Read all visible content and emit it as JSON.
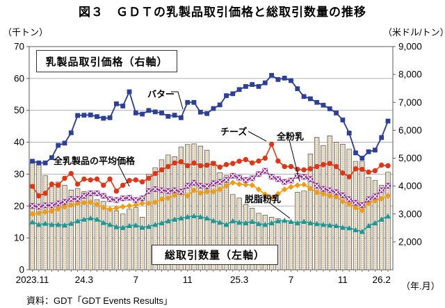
{
  "title": "図３　ＧＤＴの乳製品取引価格と総取引数量の推移",
  "source": "資料：GDT「GDT Events Results」",
  "axes": {
    "left_unit": "（千トン）",
    "right_unit": "（米ドル/トン）",
    "x_unit": "（年.月）"
  },
  "annotations": {
    "price_box": "乳製品取引価格（右軸）",
    "volume_box": "総取引数量（左軸）",
    "butter": "バター",
    "cheese": "チーズ",
    "wmp": "全粉乳",
    "average": "全乳製品の平均価格",
    "smp": "脱脂粉乳"
  },
  "colors": {
    "butter": "#2c3f99",
    "cheese": "#e23513",
    "average": "#8e2090",
    "wmp": "#f09d13",
    "smp": "#1d9a93",
    "bar_fill": "#f0e8d6",
    "bar_dot": "#b49a6e",
    "bar_stroke": "#4d4d4d",
    "grid": "#a6a6a6",
    "axis": "#595959"
  },
  "chart_data": {
    "type": "combo-bar-line",
    "n_points": 56,
    "x_description": "GDT auction events, two per month, Nov 2023 - Feb 2026",
    "x_tick_labels": [
      "2023.11",
      "24.3",
      "7",
      "11",
      "25.3",
      "7",
      "11",
      "26.2"
    ],
    "x_tick_point_indices": [
      0,
      8,
      16,
      24,
      32,
      40,
      48,
      54
    ],
    "left_axis": {
      "label": "千トン",
      "min": 0,
      "max": 70,
      "tick_step": 10,
      "ticks": [
        0,
        10,
        20,
        30,
        40,
        50,
        60,
        70
      ]
    },
    "right_axis": {
      "label": "米ドル/トン",
      "min": 1000,
      "max": 9000,
      "labeled_ticks": [
        2000,
        3000,
        4000,
        5000,
        6000,
        7000,
        8000,
        9000
      ]
    },
    "grid": "horizontal, every 10 on left axis",
    "volume_bars": {
      "name": "総取引数量",
      "axis": "left",
      "unit": "千トン",
      "values": [
        33.5,
        33,
        29.5,
        26,
        27.5,
        26.5,
        25,
        25.5,
        24.5,
        23.5,
        22,
        21.5,
        19,
        18.5,
        17.5,
        19,
        19.5,
        16.5,
        30,
        32,
        34.5,
        36,
        35.5,
        38.5,
        39.3,
        39.5,
        38.8,
        37.5,
        34,
        30.5,
        29.5,
        23.6,
        22.5,
        20.5,
        19.3,
        17.7,
        17.1,
        16.5,
        16,
        15.3,
        14.9,
        24.3,
        24.7,
        36.3,
        41.5,
        39,
        42,
        40,
        39.4,
        37.8,
        34,
        34,
        29,
        28,
        26.5,
        30.6
      ]
    },
    "price_series": [
      {
        "name": "バター",
        "marker": "square",
        "color": "#2c3f99",
        "axis": "right",
        "unit": "米ドル/トン",
        "values": [
          4890,
          4830,
          4830,
          5020,
          5460,
          5540,
          5910,
          6530,
          6540,
          6550,
          6490,
          6430,
          6450,
          6950,
          6870,
          7380,
          6620,
          6580,
          6710,
          6660,
          6620,
          6500,
          6540,
          6450,
          7000,
          7000,
          6650,
          6600,
          6780,
          6910,
          7240,
          7310,
          7460,
          7570,
          7640,
          7570,
          7700,
          7970,
          7820,
          7870,
          7780,
          7490,
          7210,
          7130,
          7000,
          6900,
          6770,
          6620,
          6370,
          5900,
          5190,
          5000,
          5230,
          5290,
          5740,
          6330
        ]
      },
      {
        "name": "チーズ",
        "marker": "circle",
        "color": "#e23513",
        "axis": "right",
        "unit": "米ドル/トン",
        "values": [
          3990,
          3650,
          3740,
          4070,
          4030,
          4280,
          4450,
          4070,
          4250,
          4220,
          4250,
          4030,
          4250,
          3820,
          4030,
          4200,
          4220,
          4150,
          4280,
          4450,
          4580,
          4700,
          4830,
          4870,
          4730,
          4830,
          4730,
          4750,
          4810,
          4680,
          4770,
          4810,
          4890,
          4950,
          4830,
          4900,
          5000,
          5500,
          4900,
          4700,
          4700,
          4600,
          4580,
          4620,
          4700,
          4770,
          4810,
          4700,
          4470,
          4330,
          4620,
          4600,
          4500,
          4550,
          4750,
          4730
        ]
      },
      {
        "name": "全乳製品の平均価格",
        "marker": "x-square",
        "color": "#8e2090",
        "axis": "right",
        "unit": "米ドル/トン",
        "values": [
          3290,
          3260,
          3310,
          3310,
          3380,
          3430,
          3540,
          3540,
          3650,
          3740,
          3740,
          3650,
          3530,
          3500,
          3560,
          3580,
          3500,
          3560,
          3820,
          3890,
          3850,
          3820,
          3850,
          3800,
          4010,
          4120,
          4010,
          3990,
          4100,
          4150,
          4220,
          4370,
          4300,
          4220,
          4280,
          4430,
          4550,
          4330,
          4250,
          4150,
          4200,
          4370,
          4330,
          4250,
          4010,
          3900,
          3850,
          3780,
          3670,
          3530,
          3400,
          3320,
          3530,
          3630,
          3850,
          4010
        ]
      },
      {
        "name": "全粉乳",
        "marker": "diamond",
        "color": "#f09d13",
        "axis": "right",
        "unit": "米ドル/トン",
        "values": [
          3000,
          3030,
          3070,
          3110,
          3190,
          3260,
          3320,
          3380,
          3400,
          3420,
          3340,
          3230,
          3170,
          3210,
          3260,
          3290,
          3320,
          3380,
          3380,
          3420,
          3530,
          3570,
          3670,
          3750,
          3650,
          3850,
          3750,
          3800,
          3800,
          3880,
          4010,
          4120,
          4070,
          4050,
          4030,
          3880,
          3700,
          3570,
          3720,
          3880,
          3970,
          4030,
          4050,
          3910,
          3780,
          3720,
          3650,
          3610,
          3450,
          3350,
          3230,
          3130,
          3380,
          3480,
          3550,
          3650
        ]
      },
      {
        "name": "脱脂粉乳",
        "marker": "triangle",
        "color": "#1d9a93",
        "axis": "right",
        "unit": "米ドル/トン",
        "values": [
          2710,
          2620,
          2660,
          2620,
          2620,
          2600,
          2660,
          2750,
          2810,
          2850,
          2810,
          2690,
          2620,
          2540,
          2510,
          2580,
          2600,
          2520,
          2550,
          2620,
          2680,
          2750,
          2810,
          2850,
          2900,
          2930,
          2900,
          2850,
          2760,
          2700,
          2620,
          2750,
          2700,
          2680,
          2730,
          2650,
          2620,
          2680,
          2750,
          2770,
          2730,
          2680,
          2730,
          2680,
          2650,
          2620,
          2600,
          2580,
          2520,
          2500,
          2430,
          2370,
          2580,
          2680,
          2810,
          2920
        ]
      }
    ]
  }
}
